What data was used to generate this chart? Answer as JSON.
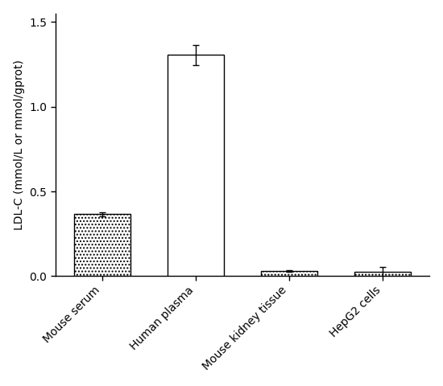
{
  "categories": [
    "Mouse serum",
    "Human plasma",
    "Mouse kidney tissue",
    "HepG2 cells"
  ],
  "values": [
    0.365,
    1.305,
    0.03,
    0.025
  ],
  "errors": [
    0.013,
    0.06,
    0.004,
    0.028
  ],
  "ylabel": "LDL-C (mmol/L or mmol/gprot)",
  "ylim": [
    0,
    1.55
  ],
  "yticks": [
    0.0,
    0.5,
    1.0,
    1.5
  ],
  "ytick_labels": [
    "0.0",
    "0.5",
    "1.0",
    "1.5"
  ],
  "bar_width": 0.6,
  "bar_edge_color": "#000000",
  "hatch_patterns": [
    "....",
    "====",
    "....",
    "...."
  ],
  "background_color": "#ffffff",
  "capsize": 3,
  "error_color": "#000000",
  "axis_fontsize": 10,
  "tick_fontsize": 10,
  "elinewidth": 1.0,
  "bar_linewidth": 1.0
}
